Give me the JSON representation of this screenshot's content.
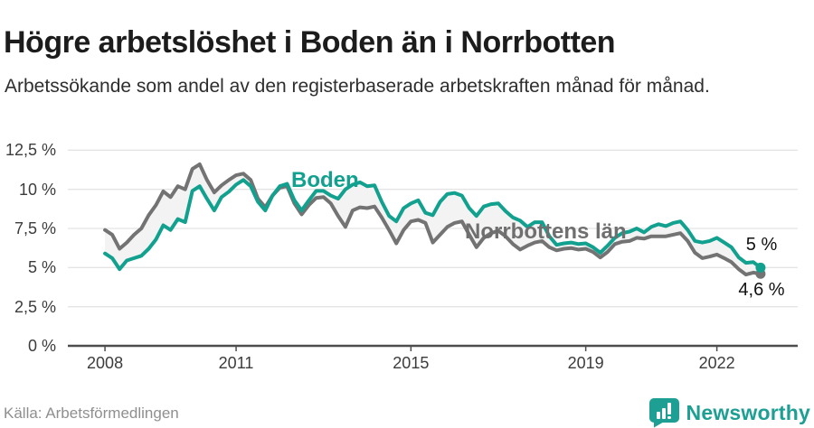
{
  "header": {
    "title": "Högre arbetslöshet i Boden än i Norrbotten",
    "subtitle": "Arbetssökande som andel av den registerbaserade arbetskraften månad för månad."
  },
  "footer": {
    "source": "Källa: Arbetsförmedlingen",
    "brand": "Newsworthy"
  },
  "colors": {
    "boden_teal": "#12a08f",
    "norrbotten_gray": "#737373",
    "band_fill": "#f3f3f3",
    "gridline": "#e4e4e4",
    "axis": "#4d4d4d",
    "brand_teal": "#1d9f93"
  },
  "chart_data": {
    "type": "line",
    "title": "Högre arbetslöshet i Boden än i Norrbotten",
    "xlabel": "",
    "ylabel": "",
    "x_unit": "years, monthly data Jan 2008 – Dec 2022 (sampled bimonthly)",
    "x_start": 2008.0,
    "x_step": 0.1666667,
    "xlim": [
      2007.15,
      2023.85
    ],
    "ylim": [
      0,
      13.5
    ],
    "grid": "horizontal",
    "legend_position": "inline-labels",
    "x_ticks": [
      {
        "v": 2008,
        "label": "2008"
      },
      {
        "v": 2011,
        "label": "2011"
      },
      {
        "v": 2015,
        "label": "2015"
      },
      {
        "v": 2019,
        "label": "2019"
      },
      {
        "v": 2022,
        "label": "2022"
      }
    ],
    "y_ticks": [
      {
        "v": 0,
        "label": "0 %"
      },
      {
        "v": 2.5,
        "label": "2,5 %"
      },
      {
        "v": 5,
        "label": "5 %"
      },
      {
        "v": 7.5,
        "label": "7,5 %"
      },
      {
        "v": 10,
        "label": "10 %"
      },
      {
        "v": 12.5,
        "label": "12,5 %"
      }
    ],
    "band_fill_between_series": true,
    "series": [
      {
        "name": "Boden",
        "color": "#12a08f",
        "end_value": 5.0,
        "end_label": "5 %",
        "values": [
          5.9,
          5.6,
          4.9,
          5.45,
          5.6,
          5.75,
          6.2,
          6.8,
          7.7,
          7.4,
          8.1,
          7.9,
          9.9,
          10.2,
          9.4,
          8.65,
          9.5,
          9.85,
          10.3,
          10.6,
          10.2,
          9.2,
          8.65,
          9.6,
          10.2,
          10.35,
          9.3,
          8.65,
          9.3,
          9.9,
          9.9,
          9.6,
          9.4,
          10.0,
          10.3,
          10.45,
          10.2,
          10.25,
          9.2,
          8.3,
          7.95,
          8.8,
          9.1,
          9.3,
          8.5,
          8.35,
          9.2,
          9.7,
          9.77,
          9.6,
          8.8,
          8.3,
          8.9,
          9.05,
          9.1,
          8.6,
          8.2,
          8.0,
          7.6,
          7.9,
          7.9,
          7.0,
          6.45,
          6.55,
          6.6,
          6.5,
          6.55,
          6.3,
          5.95,
          6.4,
          6.9,
          7.2,
          7.3,
          7.5,
          7.25,
          7.6,
          7.77,
          7.65,
          7.85,
          7.95,
          7.4,
          6.7,
          6.6,
          6.7,
          6.9,
          6.6,
          6.3,
          5.65,
          5.3,
          5.35,
          5.0
        ]
      },
      {
        "name": "Norrbottens län",
        "color": "#737373",
        "end_value": 4.6,
        "end_label": "4,6 %",
        "values": [
          7.4,
          7.1,
          6.2,
          6.6,
          7.1,
          7.5,
          8.35,
          9.0,
          9.87,
          9.5,
          10.2,
          10.0,
          11.3,
          11.6,
          10.6,
          9.8,
          10.25,
          10.6,
          10.9,
          11.0,
          10.6,
          9.4,
          8.85,
          9.6,
          10.1,
          10.2,
          9.1,
          8.4,
          9.0,
          9.45,
          9.5,
          9.1,
          8.3,
          7.6,
          8.65,
          8.85,
          8.8,
          8.9,
          8.2,
          7.4,
          6.55,
          7.4,
          7.95,
          8.05,
          7.85,
          6.6,
          7.1,
          7.6,
          7.85,
          7.95,
          7.1,
          6.3,
          6.9,
          7.2,
          7.35,
          7.0,
          6.5,
          6.15,
          6.4,
          6.6,
          6.7,
          6.3,
          6.1,
          6.2,
          6.25,
          6.15,
          6.2,
          6.0,
          5.65,
          6.0,
          6.5,
          6.65,
          6.7,
          6.9,
          6.85,
          7.0,
          7.0,
          7.0,
          7.1,
          7.2,
          6.7,
          5.95,
          5.6,
          5.7,
          5.83,
          5.6,
          5.35,
          4.9,
          4.55,
          4.68,
          4.6
        ]
      }
    ]
  }
}
